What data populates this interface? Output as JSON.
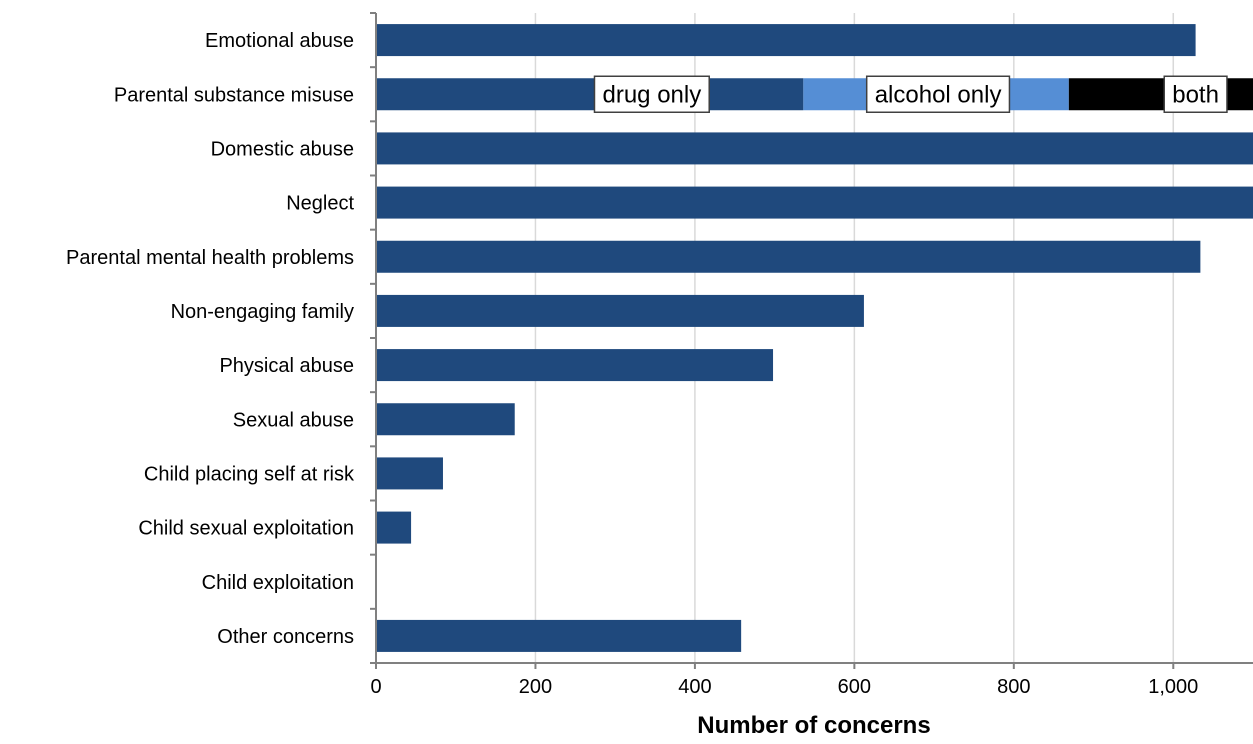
{
  "chart_data": {
    "type": "bar",
    "orientation": "horizontal",
    "stacked_segments": true,
    "xlabel": "Number of concerns",
    "ylabel": "",
    "xlim": [
      0,
      1100
    ],
    "x_ticks": [
      0,
      200,
      400,
      600,
      800,
      1000
    ],
    "x_tick_labels": [
      "0",
      "200",
      "400",
      "600",
      "800",
      "1,000"
    ],
    "grid": "vertical",
    "colors": {
      "bar": "#1F497D",
      "drug_only": "#1F497D",
      "alcohol_only": "#558ED5",
      "both": "#000000",
      "grid": "#D9D9D9",
      "axis": "#808080"
    },
    "categories": [
      "Emotional abuse",
      "Parental substance misuse",
      "Domestic abuse",
      "Neglect",
      "Parental mental health problems",
      "Non-engaging family",
      "Physical abuse",
      "Sexual abuse",
      "Child placing self at risk",
      "Child sexual exploitation",
      "Child exploitation",
      "Other concerns"
    ],
    "values": [
      1028,
      null,
      1100,
      1100,
      1034,
      612,
      498,
      174,
      84,
      44,
      0,
      458
    ],
    "segments": [
      {
        "category": "Parental substance misuse",
        "name": "drug only",
        "start": 0,
        "end": 536,
        "color": "#1F497D"
      },
      {
        "category": "Parental substance misuse",
        "name": "alcohol only",
        "start": 536,
        "end": 869,
        "color": "#558ED5"
      },
      {
        "category": "Parental substance misuse",
        "name": "both",
        "start": 869,
        "end": 1100,
        "color": "#000000"
      }
    ],
    "segment_label_centers": [
      346,
      705,
      1028
    ]
  }
}
